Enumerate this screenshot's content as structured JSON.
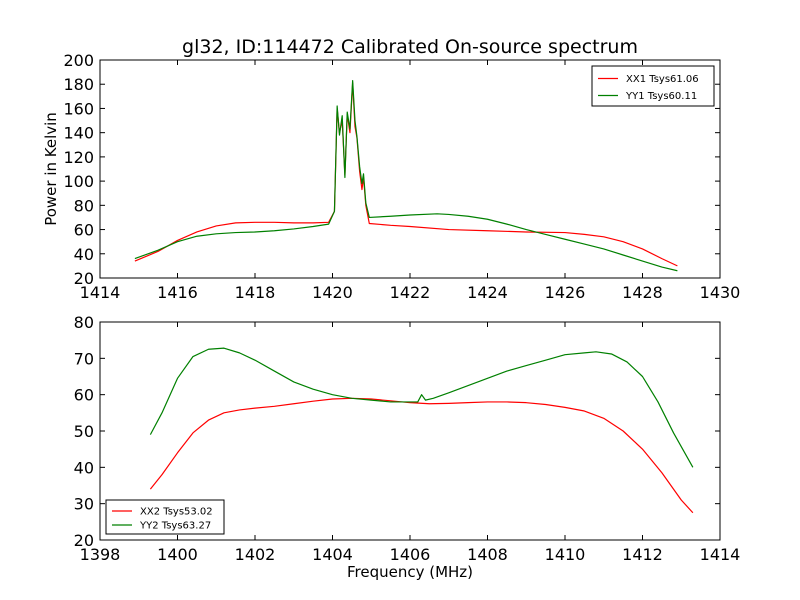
{
  "chart_data": [
    {
      "type": "line",
      "title": "gl32, ID:114472 Calibrated On-source spectrum",
      "xlabel": "",
      "ylabel": "Power in Kelvin",
      "xlim": [
        1414,
        1430
      ],
      "ylim": [
        20,
        200
      ],
      "xticks": [
        "1414",
        "1416",
        "1418",
        "1420",
        "1422",
        "1424",
        "1426",
        "1428",
        "1430"
      ],
      "yticks": [
        "20",
        "40",
        "60",
        "80",
        "100",
        "120",
        "140",
        "160",
        "180",
        "200"
      ],
      "legend_position": "top-right",
      "series": [
        {
          "name": "XX1 Tsys61.06",
          "color": "#ff0000",
          "x": [
            1414.9,
            1415.5,
            1416.0,
            1416.5,
            1417.0,
            1417.5,
            1418.0,
            1418.5,
            1419.0,
            1419.5,
            1419.9,
            1420.05,
            1420.12,
            1420.18,
            1420.25,
            1420.32,
            1420.38,
            1420.45,
            1420.52,
            1420.58,
            1420.63,
            1420.7,
            1420.76,
            1420.8,
            1420.86,
            1420.95,
            1421.5,
            1422.0,
            1423.0,
            1424.0,
            1425.0,
            1426.0,
            1426.5,
            1427.0,
            1427.5,
            1428.0,
            1428.5,
            1428.9
          ],
          "y": [
            34,
            42,
            51,
            58,
            63,
            65.5,
            66,
            66,
            65.5,
            65.5,
            66,
            75,
            160,
            140,
            150,
            105,
            155,
            140,
            181,
            145,
            136,
            108,
            93,
            103,
            80,
            65,
            63.5,
            62.5,
            60,
            59,
            58,
            57.5,
            56,
            54,
            50,
            44,
            36,
            30
          ]
        },
        {
          "name": "YY1 Tsys60.11",
          "color": "#008000",
          "x": [
            1414.9,
            1415.5,
            1416.0,
            1416.5,
            1417.0,
            1417.5,
            1418.0,
            1418.5,
            1419.0,
            1419.5,
            1419.9,
            1420.05,
            1420.12,
            1420.18,
            1420.25,
            1420.32,
            1420.38,
            1420.45,
            1420.52,
            1420.58,
            1420.63,
            1420.7,
            1420.76,
            1420.8,
            1420.86,
            1420.95,
            1421.5,
            1422.0,
            1422.7,
            1423.0,
            1423.5,
            1424.0,
            1424.5,
            1425.0,
            1425.5,
            1426.0,
            1426.5,
            1427.0,
            1427.5,
            1428.0,
            1428.5,
            1428.9
          ],
          "y": [
            36,
            43,
            50,
            54.5,
            56.5,
            57.5,
            58,
            59,
            60.5,
            62.5,
            64.5,
            75,
            162,
            138,
            154,
            103,
            157,
            143,
            183,
            150,
            137,
            112,
            98,
            106,
            82,
            70,
            71,
            72,
            73,
            72.5,
            71,
            68.5,
            64.5,
            60,
            56,
            52,
            48,
            44,
            39,
            34,
            29,
            26
          ]
        }
      ]
    },
    {
      "type": "line",
      "title": "",
      "xlabel": "Frequency (MHz)",
      "ylabel": "",
      "xlim": [
        1398,
        1414
      ],
      "ylim": [
        20,
        80
      ],
      "xticks": [
        "1398",
        "1400",
        "1402",
        "1404",
        "1406",
        "1408",
        "1410",
        "1412",
        "1414"
      ],
      "yticks": [
        "20",
        "30",
        "40",
        "50",
        "60",
        "70",
        "80"
      ],
      "legend_position": "bottom-left",
      "series": [
        {
          "name": "XX2 Tsys53.02",
          "color": "#ff0000",
          "x": [
            1399.3,
            1399.6,
            1400.0,
            1400.4,
            1400.8,
            1401.2,
            1401.6,
            1402.0,
            1402.5,
            1403.0,
            1403.5,
            1404.0,
            1404.5,
            1405.0,
            1405.5,
            1406.0,
            1406.5,
            1407.0,
            1407.5,
            1408.0,
            1408.5,
            1409.0,
            1409.5,
            1410.0,
            1410.5,
            1411.0,
            1411.5,
            1412.0,
            1412.5,
            1413.0,
            1413.3
          ],
          "y": [
            34,
            38,
            44,
            49.5,
            53,
            55,
            55.8,
            56.3,
            56.8,
            57.5,
            58.2,
            58.8,
            59,
            58.8,
            58.3,
            57.8,
            57.5,
            57.6,
            57.8,
            58,
            58,
            57.8,
            57.3,
            56.5,
            55.5,
            53.5,
            50,
            45,
            38.5,
            31,
            27.5
          ]
        },
        {
          "name": "YY2 Tsys63.27",
          "color": "#008000",
          "x": [
            1399.3,
            1399.6,
            1400.0,
            1400.4,
            1400.8,
            1401.2,
            1401.6,
            1402.0,
            1402.5,
            1403.0,
            1403.5,
            1404.0,
            1404.5,
            1405.0,
            1405.5,
            1406.0,
            1406.2,
            1406.3,
            1406.4,
            1406.6,
            1407.0,
            1407.5,
            1408.0,
            1408.5,
            1409.0,
            1409.5,
            1410.0,
            1410.5,
            1410.8,
            1411.2,
            1411.6,
            1412.0,
            1412.4,
            1412.8,
            1413.3
          ],
          "y": [
            49,
            55,
            64.5,
            70.5,
            72.5,
            72.8,
            71.5,
            69.5,
            66.5,
            63.5,
            61.5,
            60,
            59,
            58.5,
            58,
            58,
            58,
            60,
            58.5,
            59,
            60.5,
            62.5,
            64.5,
            66.5,
            68,
            69.5,
            71,
            71.5,
            71.8,
            71.2,
            69,
            65,
            58,
            49.5,
            40
          ]
        }
      ]
    }
  ]
}
